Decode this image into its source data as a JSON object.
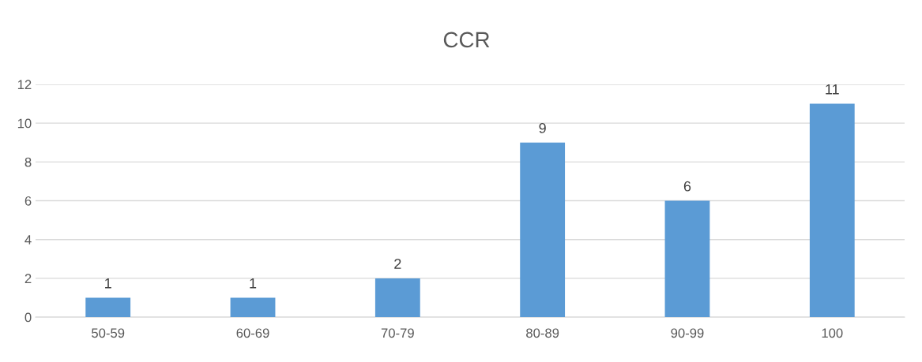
{
  "chart_data": {
    "type": "bar",
    "title": "CCR",
    "categories": [
      "50-59",
      "60-69",
      "70-79",
      "80-89",
      "90-99",
      "100"
    ],
    "values": [
      1,
      1,
      2,
      9,
      6,
      11
    ],
    "color": "#5b9bd5",
    "ylim": [
      0,
      12
    ],
    "yticks": [
      0,
      2,
      4,
      6,
      8,
      10,
      12
    ],
    "grid": "y",
    "data_labels": true
  }
}
